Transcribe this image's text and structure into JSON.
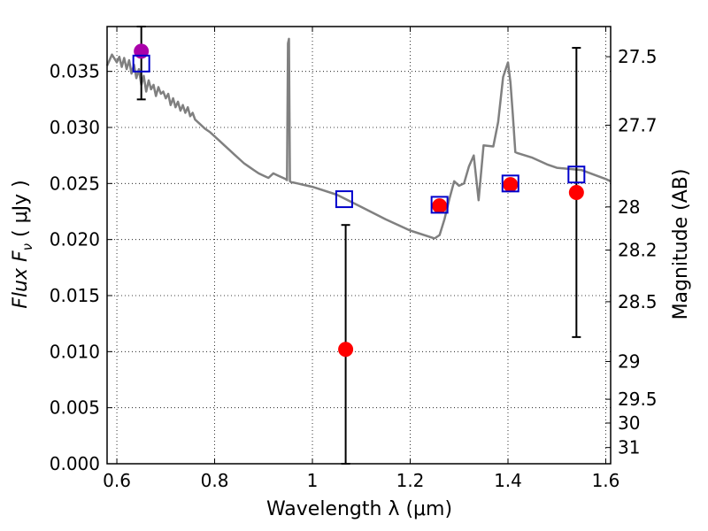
{
  "chart_data": {
    "type": "scatter",
    "xlabel": "Wavelength  λ (μm)",
    "ylabel": "Flux  F",
    "ylabel_subscript": "ν",
    "ylabel_units": "  ( μJy )",
    "y2label": "Magnitude (AB)",
    "xlim": [
      0.58,
      1.61
    ],
    "ylim": [
      0.0,
      0.039
    ],
    "grid": true,
    "x_ticks": [
      0.6,
      0.8,
      1.0,
      1.2,
      1.4,
      1.6
    ],
    "x_tick_labels": [
      "0.6",
      "0.8",
      "1",
      "1.2",
      "1.4",
      "1.6"
    ],
    "y_ticks": [
      0.0,
      0.005,
      0.01,
      0.015,
      0.02,
      0.025,
      0.03,
      0.035
    ],
    "y_tick_labels": [
      "0.000",
      "0.005",
      "0.010",
      "0.015",
      "0.020",
      "0.025",
      "0.030",
      "0.035"
    ],
    "y2_ticks": [
      27.5,
      27.7,
      28.0,
      28.2,
      28.5,
      29.0,
      29.5,
      30.0,
      31.0
    ],
    "y2_tick_labels": [
      "27.5",
      "27.7",
      "28",
      "28.2",
      "28.5",
      "29",
      "29.5",
      "30",
      "31"
    ],
    "colors": {
      "model": "#808080",
      "model_points": "#0000cc",
      "observed": "#ff0000",
      "observed_special": "#aa00aa",
      "errorbar": "#000000"
    },
    "model_spectrum": {
      "x": [
        0.58,
        0.59,
        0.6,
        0.605,
        0.61,
        0.615,
        0.62,
        0.625,
        0.63,
        0.635,
        0.64,
        0.645,
        0.65,
        0.655,
        0.66,
        0.665,
        0.67,
        0.675,
        0.68,
        0.685,
        0.69,
        0.695,
        0.7,
        0.705,
        0.71,
        0.715,
        0.72,
        0.725,
        0.73,
        0.735,
        0.74,
        0.745,
        0.75,
        0.755,
        0.76,
        0.77,
        0.78,
        0.79,
        0.8,
        0.81,
        0.82,
        0.83,
        0.84,
        0.85,
        0.86,
        0.87,
        0.88,
        0.89,
        0.9,
        0.91,
        0.92,
        0.93,
        0.94,
        0.945,
        0.948,
        0.95,
        0.952,
        0.954,
        0.957,
        0.96,
        0.97,
        0.98,
        1.0,
        1.05,
        1.1,
        1.15,
        1.2,
        1.25,
        1.26,
        1.27,
        1.28,
        1.29,
        1.3,
        1.31,
        1.32,
        1.33,
        1.34,
        1.35,
        1.37,
        1.38,
        1.39,
        1.4,
        1.405,
        1.41,
        1.415,
        1.42,
        1.45,
        1.48,
        1.5,
        1.55,
        1.6,
        1.61
      ],
      "y": [
        0.0355,
        0.0365,
        0.0358,
        0.0363,
        0.0354,
        0.0362,
        0.0352,
        0.036,
        0.0348,
        0.0356,
        0.0344,
        0.0352,
        0.0338,
        0.0346,
        0.0332,
        0.0342,
        0.0334,
        0.0338,
        0.0328,
        0.0336,
        0.033,
        0.0332,
        0.0326,
        0.033,
        0.032,
        0.0326,
        0.0318,
        0.0323,
        0.0315,
        0.032,
        0.0313,
        0.0318,
        0.031,
        0.0313,
        0.0307,
        0.0303,
        0.0299,
        0.0296,
        0.0292,
        0.0288,
        0.0284,
        0.028,
        0.0276,
        0.0272,
        0.0268,
        0.0265,
        0.0262,
        0.0259,
        0.0257,
        0.0255,
        0.0259,
        0.0257,
        0.0255,
        0.0254,
        0.0253,
        0.0375,
        0.0379,
        0.0252,
        0.0251,
        0.0251,
        0.025,
        0.0249,
        0.0247,
        0.024,
        0.0229,
        0.0218,
        0.0208,
        0.0201,
        0.0204,
        0.0218,
        0.0236,
        0.0252,
        0.0248,
        0.025,
        0.0265,
        0.0275,
        0.0235,
        0.0284,
        0.0283,
        0.0305,
        0.0345,
        0.0358,
        0.034,
        0.0311,
        0.0278,
        0.0277,
        0.0273,
        0.0267,
        0.0264,
        0.0262,
        0.0254,
        0.0252
      ]
    },
    "model_points": {
      "x": [
        0.65,
        1.065,
        1.26,
        1.405,
        1.54
      ],
      "y": [
        0.0357,
        0.0236,
        0.0231,
        0.025,
        0.0258
      ]
    },
    "observed": {
      "x": [
        0.65,
        1.068,
        1.26,
        1.405,
        1.54
      ],
      "y": [
        0.0368,
        0.0102,
        0.023,
        0.0249,
        0.0242
      ],
      "err_low": [
        0.0325,
        0.0,
        0.023,
        0.0249,
        0.0113
      ],
      "err_high": [
        0.039,
        0.0213,
        0.023,
        0.0249,
        0.0371
      ]
    }
  }
}
